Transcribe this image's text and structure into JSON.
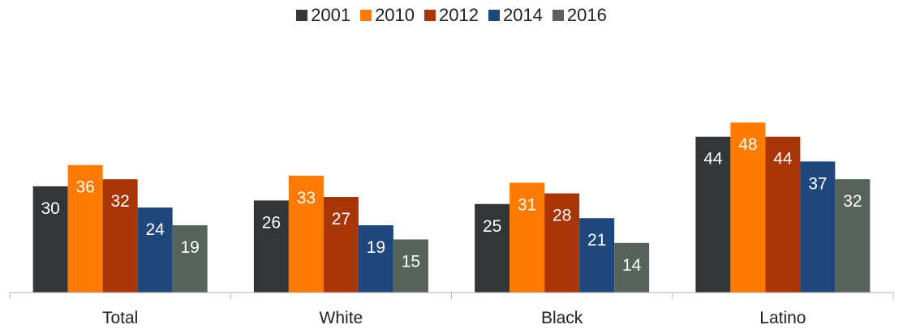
{
  "chart_data": {
    "type": "bar",
    "title": "",
    "xlabel": "",
    "ylabel": "",
    "categories": [
      "Total",
      "White",
      "Black",
      "Latino"
    ],
    "series": [
      {
        "name": "2001",
        "color": "#323639",
        "values": [
          30,
          26,
          25,
          44
        ]
      },
      {
        "name": "2010",
        "color": "#ff7a00",
        "values": [
          36,
          33,
          31,
          48
        ]
      },
      {
        "name": "2012",
        "color": "#a83508",
        "values": [
          32,
          27,
          28,
          44
        ]
      },
      {
        "name": "2014",
        "color": "#1f477c",
        "values": [
          24,
          19,
          21,
          37
        ]
      },
      {
        "name": "2016",
        "color": "#58635a",
        "values": [
          19,
          15,
          14,
          32
        ]
      }
    ],
    "ylim": [
      0,
      50
    ],
    "grid": false,
    "legend_position": "top-center",
    "data_label_color": "#ffffff"
  }
}
